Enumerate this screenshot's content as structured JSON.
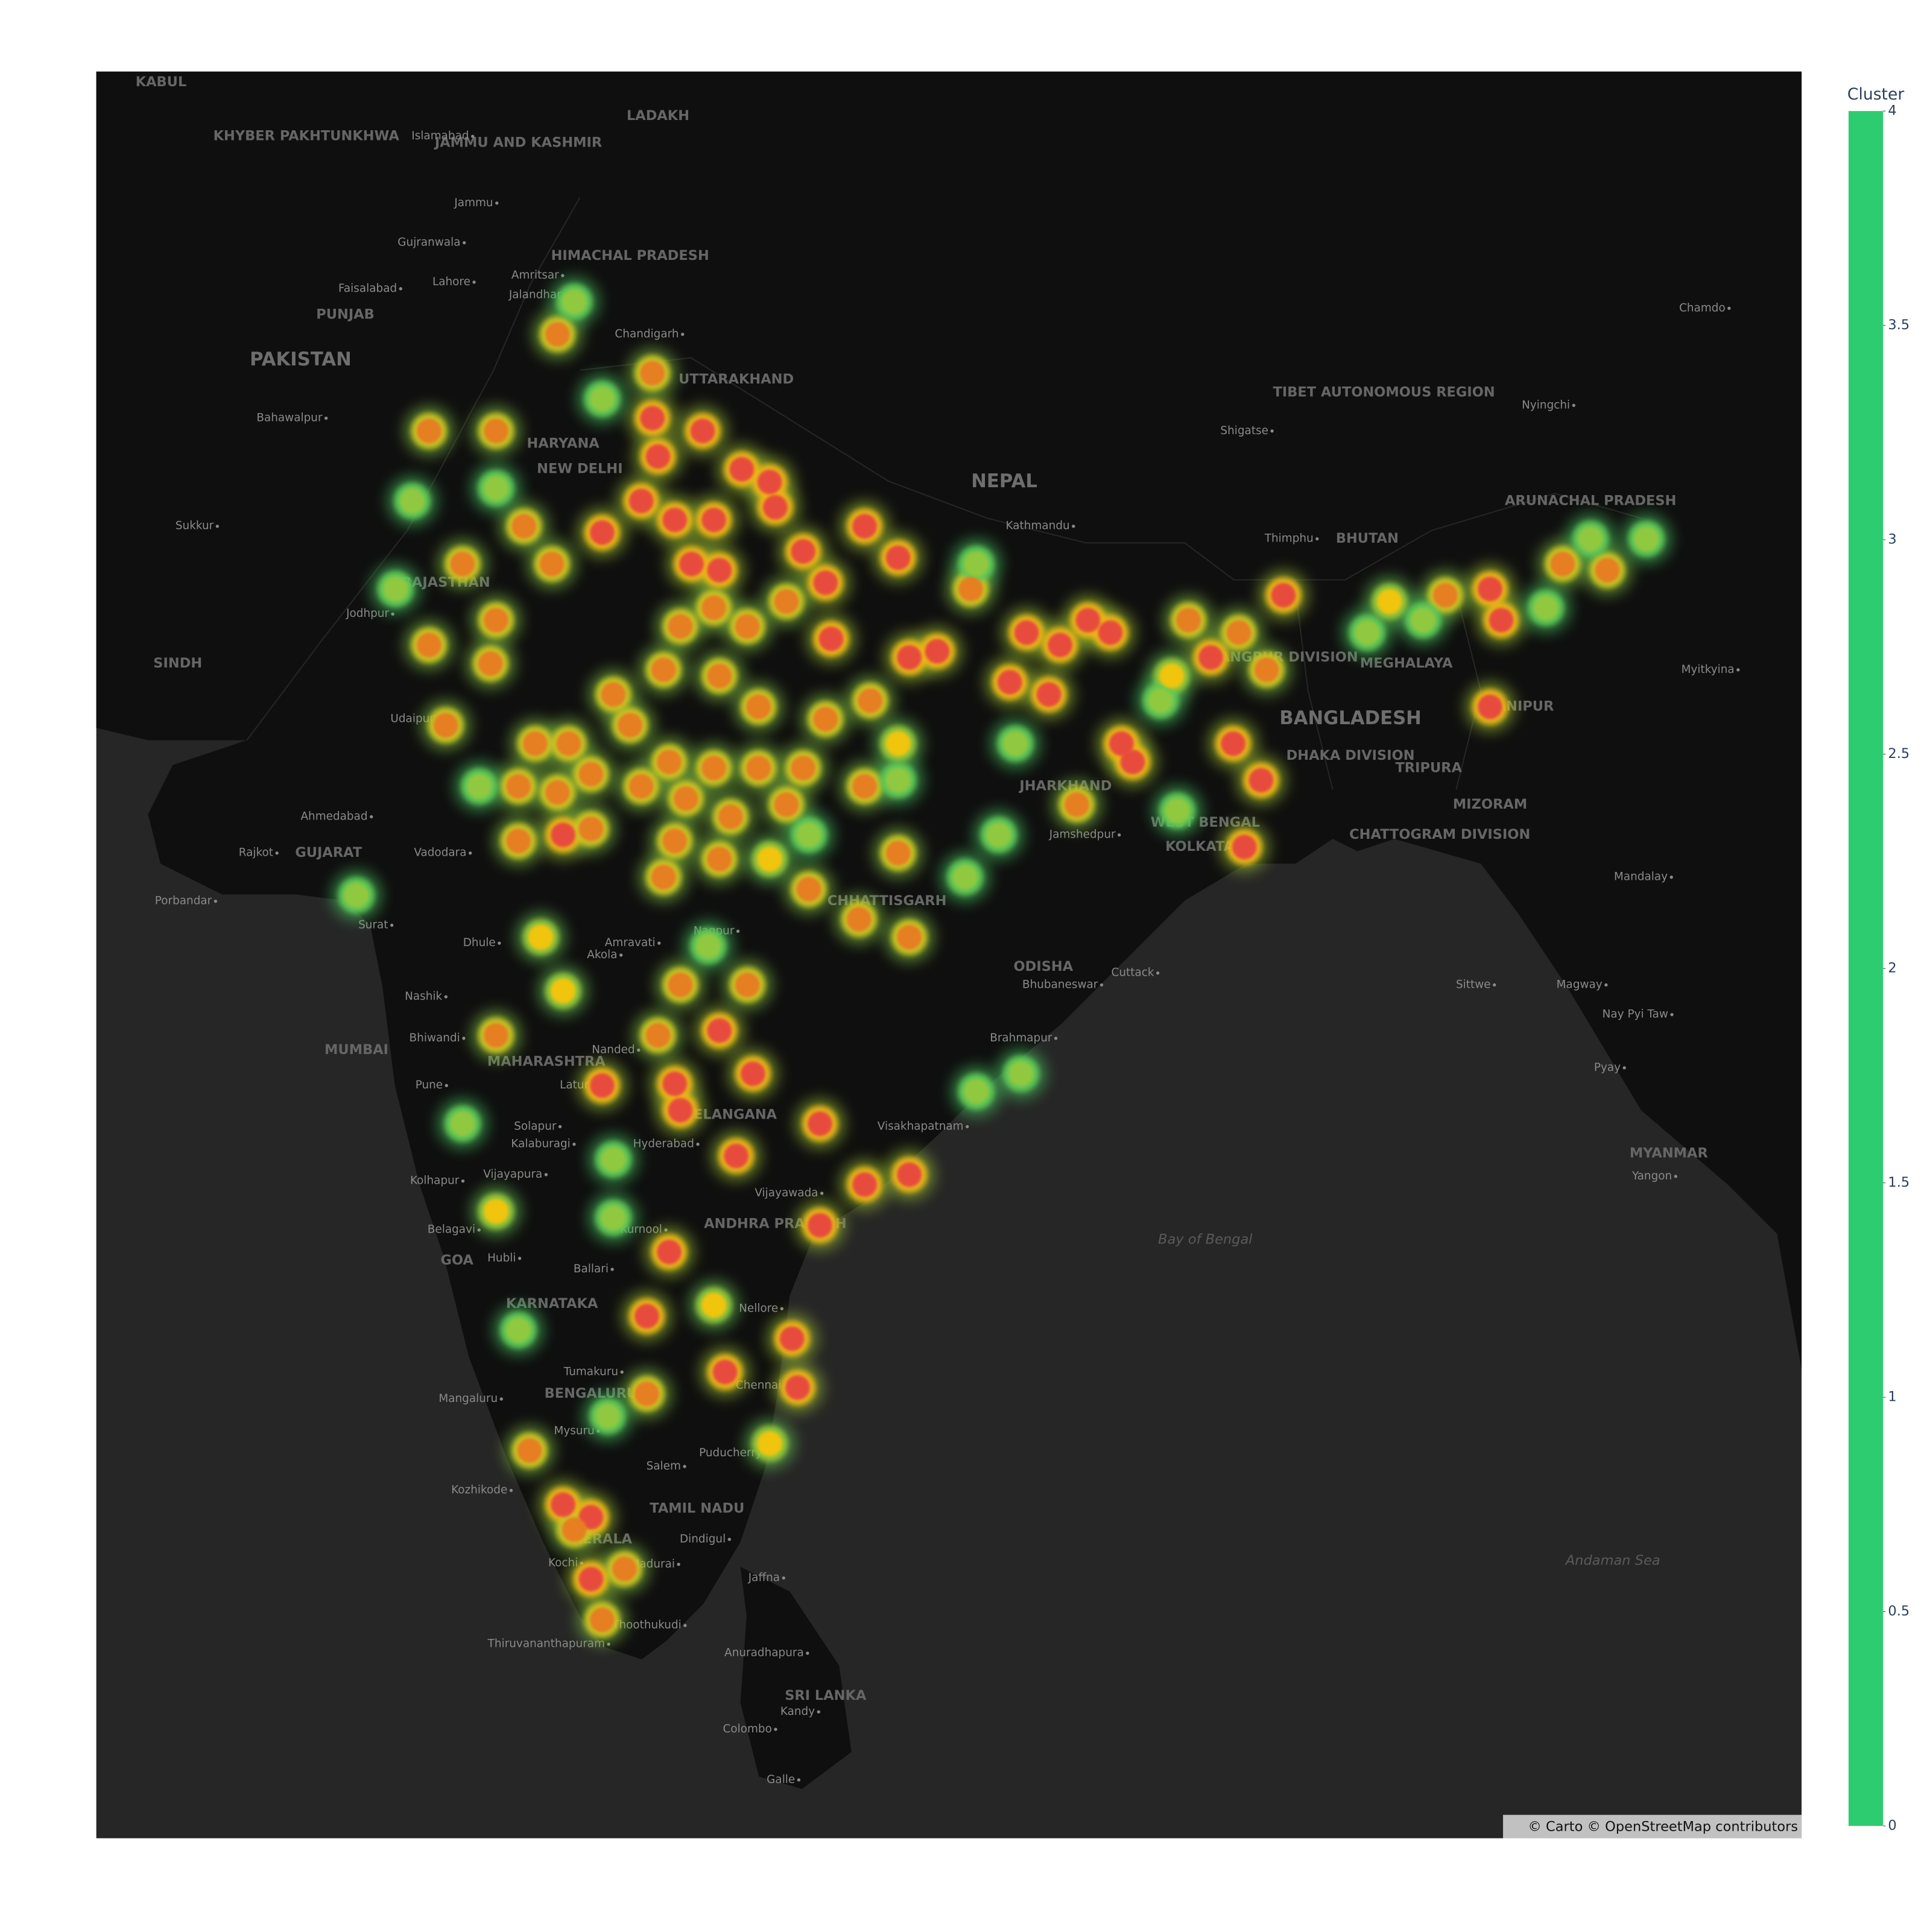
{
  "chart_data": {
    "type": "density_map",
    "colorbar_title": "Cluster",
    "zlim": [
      0,
      4
    ],
    "colorbar_ticks": [
      0,
      0.5,
      1,
      1.5,
      2,
      2.5,
      3,
      3.5,
      4
    ],
    "colorscale": [
      [
        0,
        "#2ecc71"
      ],
      [
        0.5,
        "#f1c40f"
      ],
      [
        0.75,
        "#e67e22"
      ],
      [
        1,
        "#e74c3c"
      ]
    ],
    "lonlim": [
      68.54,
      99.08
    ],
    "latlim": [
      5.34,
      34.66
    ],
    "lon": [
      78.5,
      78.6,
      78.3,
      77.6,
      78.9,
      79.2,
      79.7,
      79.4,
      80.1,
      80.6,
      80.7,
      79.6,
      81.2,
      81.6,
      82.3,
      81.7,
      82.9,
      83.1,
      83.6,
      85.2,
      85.8,
      86.3,
      86.7,
      85.6,
      84.9,
      86.9,
      87.1,
      89.8,
      93.5,
      93.7,
      93.5,
      89.1,
      89.4,
      88.9,
      88.5,
      76.9,
      80.3,
      81.5,
      80.0,
      82.3,
      83.1,
      81.5,
      78.8,
      81.0,
      79.8,
      81.1,
      79.7,
      79.0,
      78.9,
      77.6,
      78.4,
      76.9,
      77.4,
      77.4,
      76.8,
      74.5,
      75.7,
      76.2,
      76.7,
      75.1,
      75.7,
      74.5,
      75.6,
      74.8,
      76.4,
      77.0,
      77.4,
      76.8,
      76.1,
      76.1,
      77.4,
      77.8,
      78.1,
      78.7,
      79.0,
      79.7,
      80.4,
      80.2,
      79.6,
      80.9,
      81.6,
      82.4,
      82.9,
      82.3,
      82.9,
      82.2,
      83.1,
      81.3,
      80.6,
      80.9,
      81.2,
      80.4,
      79.6,
      78.8,
      78.3,
      79.1,
      79.9,
      78.9,
      79.7,
      78.7,
      76.5,
      79.0,
      80.2,
      78.6,
      75.7,
      76.3,
      78.4,
      80.6,
      77.6,
      78.0,
      94.8,
      92.7,
      91.7,
      88.1,
      86.1,
      89.5,
      89.0,
      87.8,
      95.6,
      84.2,
      76.9,
      75.7,
      79.6,
      77.1,
      78.5,
      74.2,
      73.9,
      75.4,
      73.2,
      84.3,
      82.9,
      81.3,
      85.0,
      87.6,
      87.9,
      84.3,
      85.1,
      79.5,
      75.1,
      77.8,
      77.8,
      76.1,
      77.7,
      91.3,
      92.3,
      96.3,
      94.5,
      84.1,
      84.7,
      75.7,
      77.6,
      77.1,
      95.3
    ],
    "lat": [
      29.4,
      28.8,
      28.1,
      27.6,
      27.8,
      27.1,
      27.0,
      29.2,
      28.6,
      28.4,
      28.0,
      27.8,
      27.3,
      26.8,
      27.7,
      25.9,
      27.2,
      25.6,
      25.7,
      26.0,
      25.8,
      26.2,
      26.0,
      25.0,
      25.2,
      24.2,
      23.9,
      26.6,
      26.7,
      26.2,
      24.8,
      22.5,
      23.6,
      24.2,
      25.6,
      22.7,
      18.7,
      17.85,
      17.3,
      16.81,
      16.98,
      16.11,
      15.65,
      14.15,
      13.57,
      13.3,
      19.43,
      18.08,
      18.53,
      18.5,
      14.54,
      11.25,
      11.03,
      9.94,
      30.7,
      29.2,
      29.2,
      27.7,
      27.1,
      27.1,
      26.2,
      25.8,
      25.5,
      24.5,
      24.2,
      24.2,
      23.7,
      23.4,
      23.5,
      22.6,
      22.8,
      25.0,
      24.5,
      25.4,
      26.1,
      25.3,
      24.8,
      26.1,
      26.4,
      26.5,
      24.6,
      24.9,
      24.2,
      23.5,
      22.4,
      21.3,
      21.0,
      21.8,
      22.3,
      23.2,
      23.8,
      23.8,
      23.8,
      23.9,
      23.5,
      23.3,
      23.0,
      22.6,
      22.3,
      22.0,
      21.0,
      20.2,
      20.2,
      19.35,
      19.35,
      12.2,
      13.19,
      12.32,
      9.22,
      10.12,
      27.1,
      26.6,
      26.5,
      26.2,
      23.2,
      25.4,
      26.0,
      25.3,
      27.0,
      26.7,
      20.1,
      16.35,
      14.73,
      10.81,
      30.1,
      28.1,
      26.7,
      23.5,
      21.7,
      27.1,
      23.6,
      22.7,
      24.2,
      24.9,
      23.1,
      18.4,
      18.7,
      20.85,
      17.85,
      17.24,
      16.24,
      14.3,
      12.8,
      26.0,
      26.2,
      27.5,
      26.4,
      22.0,
      22.7,
      28.3,
      29.7,
      31.2,
      27.5
    ],
    "z": [
      4,
      4,
      4,
      4,
      4,
      4,
      4,
      4,
      4,
      4,
      4,
      4,
      4,
      4,
      4,
      4,
      4,
      4,
      4,
      4,
      4,
      4,
      4,
      4,
      4,
      4,
      4,
      4,
      4,
      4,
      4,
      4,
      4,
      4,
      4,
      4,
      4,
      4,
      4,
      4,
      4,
      4,
      4,
      4,
      4,
      4,
      4,
      4,
      4,
      4,
      4,
      4,
      4,
      4,
      3,
      3,
      3,
      3,
      3,
      3,
      3,
      3,
      3,
      3,
      3,
      3,
      3,
      3,
      3,
      3,
      3,
      3,
      3,
      3,
      3,
      3,
      3,
      3,
      3,
      3,
      3,
      3,
      2,
      3,
      3,
      3,
      3,
      3,
      2,
      3,
      3,
      3,
      3,
      3,
      3,
      3,
      3,
      3,
      3,
      3,
      2,
      3,
      3,
      3,
      3,
      3,
      3,
      2,
      3,
      3,
      3,
      3,
      2,
      3,
      3,
      3,
      3,
      2,
      3,
      3,
      2,
      2,
      2,
      3,
      3,
      1,
      1,
      1,
      1,
      1,
      1,
      1,
      1,
      1,
      1,
      1,
      1,
      1,
      1,
      1,
      1,
      1,
      1,
      1,
      1,
      1,
      1,
      1,
      1,
      1,
      1,
      1,
      1
    ],
    "labels": [
      {
        "text": "KABUL",
        "lon": 69.7,
        "lat": 34.5,
        "style": "region"
      },
      {
        "text": "KHYBER PAKHTUNKHWA",
        "lon": 72.3,
        "lat": 33.7,
        "style": "region"
      },
      {
        "text": "JAMMU AND KASHMIR",
        "lon": 76.1,
        "lat": 33.6,
        "style": "region"
      },
      {
        "text": "LADAKH",
        "lon": 78.6,
        "lat": 34.0,
        "style": "region"
      },
      {
        "text": "Islamabad",
        "lon": 74.7,
        "lat": 33.7,
        "style": "city"
      },
      {
        "text": "Jammu",
        "lon": 75.3,
        "lat": 32.7,
        "style": "city"
      },
      {
        "text": "Gujranwala",
        "lon": 74.5,
        "lat": 32.1,
        "style": "city"
      },
      {
        "text": "Lahore",
        "lon": 74.9,
        "lat": 31.5,
        "style": "city"
      },
      {
        "text": "Amritsar",
        "lon": 76.4,
        "lat": 31.6,
        "style": "city"
      },
      {
        "text": "Faisalabad",
        "lon": 73.4,
        "lat": 31.4,
        "style": "city"
      },
      {
        "text": "Jalandhar",
        "lon": 76.4,
        "lat": 31.3,
        "style": "city"
      },
      {
        "text": "PUNJAB",
        "lon": 73.0,
        "lat": 31.0,
        "style": "region"
      },
      {
        "text": "HIMACHAL PRADESH",
        "lon": 78.1,
        "lat": 31.9,
        "style": "region"
      },
      {
        "text": "Chandigarh",
        "lon": 78.4,
        "lat": 30.7,
        "style": "city"
      },
      {
        "text": "PAKISTAN",
        "lon": 72.2,
        "lat": 30.3,
        "style": "country"
      },
      {
        "text": "UTTARAKHAND",
        "lon": 80.0,
        "lat": 30.0,
        "style": "region"
      },
      {
        "text": "Bahawalpur",
        "lon": 72.0,
        "lat": 29.4,
        "style": "city"
      },
      {
        "text": "HARYANA",
        "lon": 76.9,
        "lat": 29.0,
        "style": "region"
      },
      {
        "text": "NEW DELHI",
        "lon": 77.2,
        "lat": 28.6,
        "style": "region"
      },
      {
        "text": "NEPAL",
        "lon": 84.8,
        "lat": 28.4,
        "style": "country"
      },
      {
        "text": "Kathmandu",
        "lon": 85.4,
        "lat": 27.7,
        "style": "city"
      },
      {
        "text": "TIBET AUTONOMOUS REGION",
        "lon": 91.6,
        "lat": 29.8,
        "style": "region"
      },
      {
        "text": "Shigatse",
        "lon": 89.1,
        "lat": 29.2,
        "style": "city"
      },
      {
        "text": "Nyingchi",
        "lon": 94.5,
        "lat": 29.6,
        "style": "city"
      },
      {
        "text": "Chamdo",
        "lon": 97.3,
        "lat": 31.1,
        "style": "city"
      },
      {
        "text": "ARUNACHAL PRADESH",
        "lon": 95.3,
        "lat": 28.1,
        "style": "region"
      },
      {
        "text": "BHUTAN",
        "lon": 91.3,
        "lat": 27.5,
        "style": "region"
      },
      {
        "text": "Thimphu",
        "lon": 89.9,
        "lat": 27.5,
        "style": "city"
      },
      {
        "text": "Sukkur",
        "lon": 70.3,
        "lat": 27.7,
        "style": "city"
      },
      {
        "text": "Jodhpur",
        "lon": 73.4,
        "lat": 26.3,
        "style": "city"
      },
      {
        "text": "RAJASTHAN",
        "lon": 74.8,
        "lat": 26.8,
        "style": "region"
      },
      {
        "text": "SINDH",
        "lon": 70.0,
        "lat": 25.5,
        "style": "region"
      },
      {
        "text": "Udaipur",
        "lon": 74.2,
        "lat": 24.6,
        "style": "city"
      },
      {
        "text": "MEGHALAYA",
        "lon": 92.0,
        "lat": 25.5,
        "style": "region"
      },
      {
        "text": "RANGPUR DIVISION",
        "lon": 89.8,
        "lat": 25.6,
        "style": "region"
      },
      {
        "text": "BANGLADESH",
        "lon": 91.0,
        "lat": 24.6,
        "style": "country"
      },
      {
        "text": "DHAKA DIVISION",
        "lon": 91.0,
        "lat": 24.0,
        "style": "region"
      },
      {
        "text": "TRIPURA",
        "lon": 92.4,
        "lat": 23.8,
        "style": "region"
      },
      {
        "text": "MANIPUR",
        "lon": 94.0,
        "lat": 24.8,
        "style": "region"
      },
      {
        "text": "Myitkyina",
        "lon": 97.4,
        "lat": 25.4,
        "style": "city"
      },
      {
        "text": "MIZORAM",
        "lon": 93.5,
        "lat": 23.2,
        "style": "region"
      },
      {
        "text": "CHATTOGRAM DIVISION",
        "lon": 92.6,
        "lat": 22.7,
        "style": "region"
      },
      {
        "text": "JHARKHAND",
        "lon": 85.9,
        "lat": 23.5,
        "style": "region"
      },
      {
        "text": "Jamshedpur",
        "lon": 86.2,
        "lat": 22.7,
        "style": "city"
      },
      {
        "text": "WEST BENGAL",
        "lon": 88.4,
        "lat": 22.9,
        "style": "region"
      },
      {
        "text": "KOLKATA",
        "lon": 88.3,
        "lat": 22.5,
        "style": "region"
      },
      {
        "text": "Ahmedabad",
        "lon": 72.8,
        "lat": 23.0,
        "style": "city"
      },
      {
        "text": "GUJARAT",
        "lon": 72.7,
        "lat": 22.4,
        "style": "region"
      },
      {
        "text": "Rajkot",
        "lon": 71.4,
        "lat": 22.4,
        "style": "city"
      },
      {
        "text": "Vadodara",
        "lon": 74.7,
        "lat": 22.4,
        "style": "city"
      },
      {
        "text": "Porbandar",
        "lon": 70.1,
        "lat": 21.6,
        "style": "city"
      },
      {
        "text": "Surat",
        "lon": 73.5,
        "lat": 21.2,
        "style": "city"
      },
      {
        "text": "CHHATTISGARH",
        "lon": 82.7,
        "lat": 21.6,
        "style": "region"
      },
      {
        "text": "Mandalay",
        "lon": 96.2,
        "lat": 22.0,
        "style": "city"
      },
      {
        "text": "Dhule",
        "lon": 75.4,
        "lat": 20.9,
        "style": "city"
      },
      {
        "text": "Amravati",
        "lon": 78.1,
        "lat": 20.9,
        "style": "city"
      },
      {
        "text": "Nagpur",
        "lon": 79.6,
        "lat": 21.1,
        "style": "city"
      },
      {
        "text": "Akola",
        "lon": 77.6,
        "lat": 20.7,
        "style": "city"
      },
      {
        "text": "ODISHA",
        "lon": 85.5,
        "lat": 20.5,
        "style": "region"
      },
      {
        "text": "Bhubaneswar",
        "lon": 85.8,
        "lat": 20.2,
        "style": "city"
      },
      {
        "text": "Cuttack",
        "lon": 87.1,
        "lat": 20.4,
        "style": "city"
      },
      {
        "text": "Nashik",
        "lon": 74.4,
        "lat": 20.0,
        "style": "city"
      },
      {
        "text": "Sittwe",
        "lon": 93.2,
        "lat": 20.2,
        "style": "city"
      },
      {
        "text": "Magway",
        "lon": 95.1,
        "lat": 20.2,
        "style": "city"
      },
      {
        "text": "Bhiwandi",
        "lon": 74.6,
        "lat": 19.3,
        "style": "city"
      },
      {
        "text": "MUMBAI",
        "lon": 73.2,
        "lat": 19.1,
        "style": "region"
      },
      {
        "text": "MAHARASHTRA",
        "lon": 76.6,
        "lat": 18.9,
        "style": "region"
      },
      {
        "text": "Brahmapur",
        "lon": 85.1,
        "lat": 19.3,
        "style": "city"
      },
      {
        "text": "Nay Pyi Taw",
        "lon": 96.1,
        "lat": 19.7,
        "style": "city"
      },
      {
        "text": "Nanded",
        "lon": 77.8,
        "lat": 19.1,
        "style": "city"
      },
      {
        "text": "Pune",
        "lon": 74.5,
        "lat": 18.5,
        "style": "city"
      },
      {
        "text": "Pyay",
        "lon": 95.6,
        "lat": 18.8,
        "style": "city"
      },
      {
        "text": "Latur",
        "lon": 77.1,
        "lat": 18.5,
        "style": "city"
      },
      {
        "text": "TELANGANA",
        "lon": 79.9,
        "lat": 18.0,
        "style": "region"
      },
      {
        "text": "Visakhapatnam",
        "lon": 83.3,
        "lat": 17.8,
        "style": "city"
      },
      {
        "text": "Solapur",
        "lon": 76.4,
        "lat": 17.8,
        "style": "city"
      },
      {
        "text": "Kalaburagi",
        "lon": 76.5,
        "lat": 17.5,
        "style": "city"
      },
      {
        "text": "Hyderabad",
        "lon": 78.7,
        "lat": 17.5,
        "style": "city"
      },
      {
        "text": "MYANMAR",
        "lon": 96.7,
        "lat": 17.34,
        "style": "region"
      },
      {
        "text": "Yangon",
        "lon": 96.4,
        "lat": 16.95,
        "style": "city"
      },
      {
        "text": "Kolhapur",
        "lon": 74.6,
        "lat": 16.87,
        "style": "city"
      },
      {
        "text": "Vijayapura",
        "lon": 76.0,
        "lat": 16.98,
        "style": "city"
      },
      {
        "text": "Vijayawada",
        "lon": 80.9,
        "lat": 16.66,
        "style": "city"
      },
      {
        "text": "Belagavi",
        "lon": 74.9,
        "lat": 16.03,
        "style": "city"
      },
      {
        "text": "ANDHRA PRADESH",
        "lon": 80.7,
        "lat": 16.13,
        "style": "region"
      },
      {
        "text": "Kurnool",
        "lon": 78.3,
        "lat": 16.03,
        "style": "city"
      },
      {
        "text": "Bay of Bengal",
        "lon": 88.4,
        "lat": 15.86,
        "style": "sea"
      },
      {
        "text": "GOA",
        "lon": 75.0,
        "lat": 15.5,
        "style": "region"
      },
      {
        "text": "Hubli",
        "lon": 75.8,
        "lat": 15.54,
        "style": "city"
      },
      {
        "text": "Ballari",
        "lon": 77.4,
        "lat": 15.35,
        "style": "city"
      },
      {
        "text": "KARNATAKA",
        "lon": 76.7,
        "lat": 14.75,
        "style": "region"
      },
      {
        "text": "Nellore",
        "lon": 80.4,
        "lat": 14.67,
        "style": "city"
      },
      {
        "text": "Tumakuru",
        "lon": 77.4,
        "lat": 13.57,
        "style": "city"
      },
      {
        "text": "BENGALURU",
        "lon": 77.4,
        "lat": 13.19,
        "style": "region"
      },
      {
        "text": "Mangaluru",
        "lon": 75.2,
        "lat": 13.1,
        "style": "city"
      },
      {
        "text": "Chennai",
        "lon": 80.4,
        "lat": 13.33,
        "style": "city"
      },
      {
        "text": "Mysuru",
        "lon": 77.1,
        "lat": 12.54,
        "style": "city"
      },
      {
        "text": "Puducherry",
        "lon": 79.9,
        "lat": 12.15,
        "style": "city"
      },
      {
        "text": "Salem",
        "lon": 78.7,
        "lat": 11.92,
        "style": "city"
      },
      {
        "text": "Kozhikode",
        "lon": 75.4,
        "lat": 11.5,
        "style": "city"
      },
      {
        "text": "KERALA",
        "lon": 77.6,
        "lat": 10.64,
        "style": "region"
      },
      {
        "text": "TAMIL NADU",
        "lon": 79.3,
        "lat": 11.18,
        "style": "region"
      },
      {
        "text": "Dindigul",
        "lon": 79.4,
        "lat": 10.64,
        "style": "city"
      },
      {
        "text": "Kochi",
        "lon": 76.9,
        "lat": 10.22,
        "style": "city"
      },
      {
        "text": "Madurai",
        "lon": 78.5,
        "lat": 10.2,
        "style": "city"
      },
      {
        "text": "Jaffna",
        "lon": 80.5,
        "lat": 9.96,
        "style": "city"
      },
      {
        "text": "Andaman Sea",
        "lon": 95.7,
        "lat": 10.26,
        "style": "sea"
      },
      {
        "text": "Thoothukudi",
        "lon": 78.4,
        "lat": 9.12,
        "style": "city"
      },
      {
        "text": "Thiruvananthapuram",
        "lon": 76.6,
        "lat": 8.79,
        "style": "city"
      },
      {
        "text": "Anuradhapura",
        "lon": 80.5,
        "lat": 8.63,
        "style": "city"
      },
      {
        "text": "SRI LANKA",
        "lon": 81.6,
        "lat": 7.87,
        "style": "region"
      },
      {
        "text": "Kandy",
        "lon": 81.1,
        "lat": 7.59,
        "style": "city"
      },
      {
        "text": "Colombo",
        "lon": 80.2,
        "lat": 7.28,
        "style": "city"
      },
      {
        "text": "Galle",
        "lon": 80.8,
        "lat": 6.38,
        "style": "city"
      }
    ],
    "attribution": "© Carto © OpenStreetMap contributors"
  }
}
